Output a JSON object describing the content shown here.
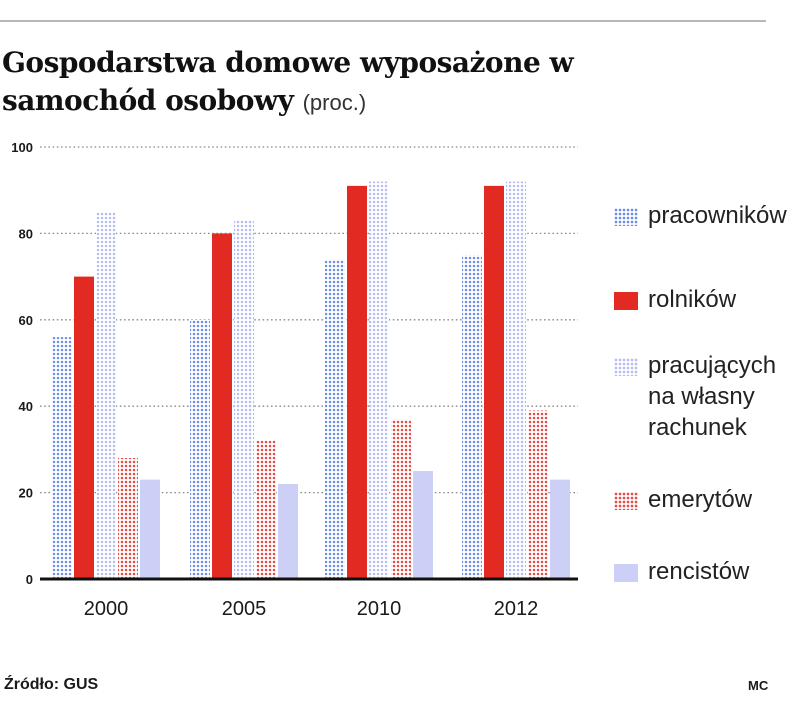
{
  "header": {
    "title": "Gospodarstwa domowe wyposażone w samochód osobowy",
    "unit": "(proc.)"
  },
  "chart_data": {
    "type": "bar",
    "title": "Gospodarstwa domowe wyposażone w samochód osobowy",
    "unit": "(proc.)",
    "xlabel": "",
    "ylabel": "",
    "ylim": [
      0,
      100
    ],
    "yticks": [
      0,
      20,
      40,
      60,
      80,
      100
    ],
    "grid": true,
    "legend_position": "right",
    "categories": [
      "2000",
      "2005",
      "2010",
      "2012"
    ],
    "series": [
      {
        "name": "pracowników",
        "values": [
          56,
          60,
          74,
          75
        ],
        "color": "#6f8fe6",
        "pattern": "dots"
      },
      {
        "name": "rolników",
        "values": [
          70,
          80,
          91,
          91
        ],
        "color": "#e32a22",
        "pattern": "solid"
      },
      {
        "name": "pracujących na własny rachunek",
        "values": [
          85,
          83,
          92,
          92
        ],
        "color": "#b7bdf0",
        "pattern": "dots"
      },
      {
        "name": "emerytów",
        "values": [
          28,
          32,
          37,
          39
        ],
        "color": "#e84a45",
        "pattern": "dots"
      },
      {
        "name": "rencistów",
        "values": [
          23,
          22,
          25,
          23
        ],
        "color": "#cdd0f6",
        "pattern": "solid"
      }
    ]
  },
  "legend": {
    "items": [
      {
        "label": "pracowników"
      },
      {
        "label": "rolników"
      },
      {
        "label": "pracujących na własny rachunek"
      },
      {
        "label": "emerytów"
      },
      {
        "label": "rencistów"
      }
    ]
  },
  "footer": {
    "source": "Źródło: GUS",
    "credit": "MC"
  }
}
